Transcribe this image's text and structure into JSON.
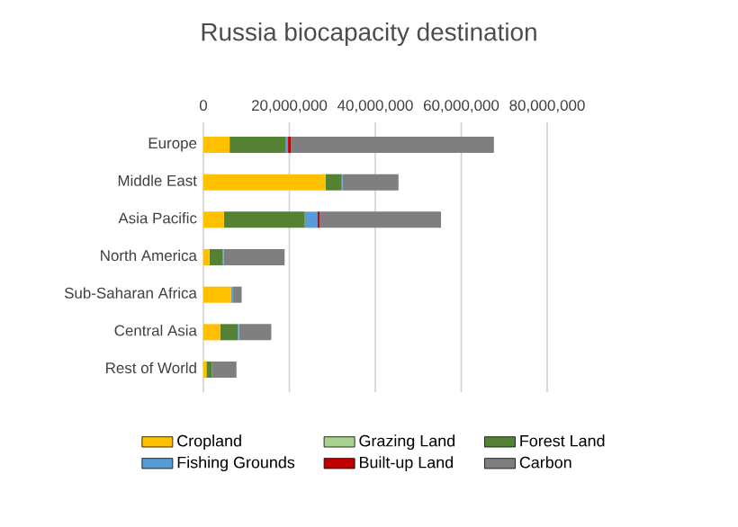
{
  "chart_data": {
    "type": "bar",
    "orientation": "horizontal",
    "stacked": true,
    "title": "Russia biocapacity destination",
    "categories": [
      "Europe",
      "Middle East",
      "Asia Pacific",
      "North America",
      "Sub-Saharan Africa",
      "Central Asia",
      "Rest of World"
    ],
    "series": [
      {
        "name": "Cropland",
        "color": "#ffc000",
        "values": [
          6100000,
          28400000,
          4800000,
          1400000,
          6400000,
          3900000,
          700000
        ]
      },
      {
        "name": "Grazing Land",
        "color": "#a9d18e",
        "values": [
          0,
          0,
          0,
          0,
          0,
          0,
          0
        ]
      },
      {
        "name": "Forest Land",
        "color": "#548235",
        "values": [
          13100000,
          3800000,
          18800000,
          3000000,
          200000,
          4100000,
          1300000
        ]
      },
      {
        "name": "Fishing Grounds",
        "color": "#5b9bd5",
        "values": [
          500000,
          200000,
          3000000,
          300000,
          300000,
          300000,
          0
        ]
      },
      {
        "name": "Built-up Land",
        "color": "#c00000",
        "values": [
          700000,
          0,
          400000,
          0,
          0,
          0,
          0
        ]
      },
      {
        "name": "Carbon",
        "color": "#7f7f7f",
        "values": [
          47200000,
          13000000,
          28300000,
          14200000,
          2000000,
          7500000,
          5700000
        ]
      }
    ],
    "xlim": [
      0,
      80000000
    ],
    "xticks": [
      0,
      {
        "value": 20000000,
        "label": "20,000,000"
      },
      {
        "value": 40000000,
        "label": "40,000,000"
      },
      {
        "value": 60000000,
        "label": "60,000,000"
      },
      {
        "value": 80000000,
        "label": "80,000,000"
      }
    ],
    "grid": "x",
    "legend": "bottom"
  }
}
